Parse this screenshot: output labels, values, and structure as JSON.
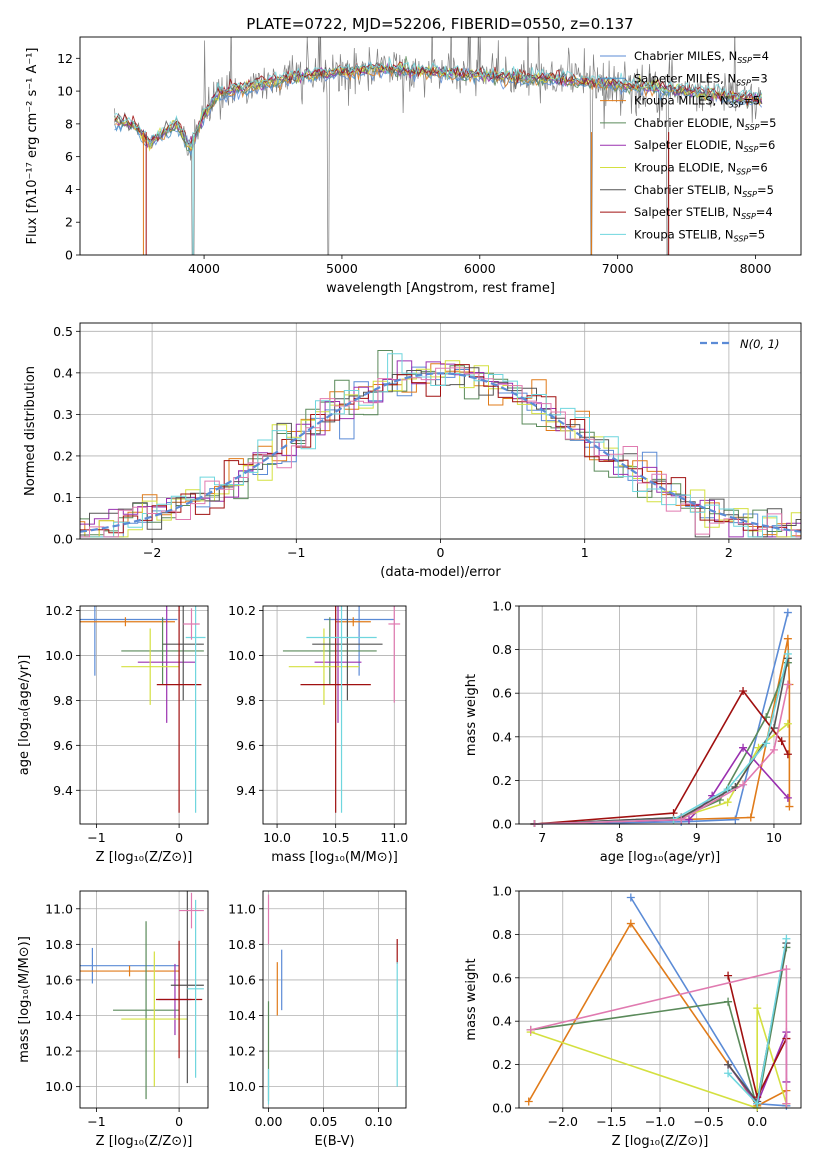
{
  "title": "PLATE=0722, MJD=52206, FIBERID=0550, z=0.137",
  "colors": {
    "chabrier_miles": "#5b8bd6",
    "salpeter_miles": "#4a90c8",
    "kroupa_miles": "#e07b1a",
    "chabrier_elodie": "#5a8a5a",
    "salpeter_elodie": "#9a30b0",
    "kroupa_elodie": "#d4e040",
    "chabrier_stelib": "#555555",
    "salpeter_stelib": "#a01010",
    "kroupa_stelib": "#6fd6de",
    "pink": "#e07ab0",
    "gray": "#808080",
    "gaussian": "#5b8bd6"
  },
  "legend_spectrum": [
    {
      "label": "Chabrier MILES, N",
      "sub": "SSP",
      "tail": "=4",
      "color": "#5b8bd6"
    },
    {
      "label": "Salpeter MILES, N",
      "sub": "SSP",
      "tail": "=3",
      "color": "#4a90c8"
    },
    {
      "label": "Kroupa MILES, N",
      "sub": "SSP",
      "tail": "=5",
      "color": "#e07b1a"
    },
    {
      "label": "Chabrier ELODIE, N",
      "sub": "SSP",
      "tail": "=5",
      "color": "#5a8a5a"
    },
    {
      "label": "Salpeter ELODIE, N",
      "sub": "SSP",
      "tail": "=6",
      "color": "#9a30b0"
    },
    {
      "label": "Kroupa ELODIE, N",
      "sub": "SSP",
      "tail": "=6",
      "color": "#d4e040"
    },
    {
      "label": "Chabrier STELIB, N",
      "sub": "SSP",
      "tail": "=5",
      "color": "#555555"
    },
    {
      "label": "Salpeter STELIB, N",
      "sub": "SSP",
      "tail": "=4",
      "color": "#a01010"
    },
    {
      "label": "Kroupa STELIB, N",
      "sub": "SSP",
      "tail": "=5",
      "color": "#6fd6de"
    }
  ],
  "chart_data": [
    {
      "type": "line",
      "title": "PLATE=0722, MJD=52206, FIBERID=0550, z=0.137",
      "xlabel": "wavelength [Angstrom, rest frame]",
      "ylabel": "Flux [fλ10⁻¹⁷ erg cm⁻² s⁻¹ A⁻¹]",
      "xlim": [
        3100,
        8330
      ],
      "ylim": [
        0,
        13.3
      ],
      "xticks": [
        4000,
        5000,
        6000,
        7000,
        8000
      ],
      "yticks": [
        0,
        2,
        4,
        6,
        8,
        10,
        12
      ],
      "legend": "top-right",
      "continuum_model": [
        [
          3350,
          8.2
        ],
        [
          3500,
          7.9
        ],
        [
          3600,
          6.8
        ],
        [
          3700,
          7.4
        ],
        [
          3800,
          8.0
        ],
        [
          3900,
          6.5
        ],
        [
          4000,
          8.6
        ],
        [
          4100,
          9.8
        ],
        [
          4300,
          10.2
        ],
        [
          4500,
          10.6
        ],
        [
          4700,
          10.9
        ],
        [
          5000,
          11.2
        ],
        [
          5300,
          11.3
        ],
        [
          5600,
          11.2
        ],
        [
          6000,
          11.0
        ],
        [
          6300,
          10.8
        ],
        [
          6600,
          10.7
        ],
        [
          6900,
          10.5
        ],
        [
          7200,
          10.2
        ],
        [
          7500,
          10.0
        ],
        [
          7800,
          9.7
        ],
        [
          8050,
          9.5
        ]
      ]
    },
    {
      "type": "line",
      "xlabel": "(data-model)/error",
      "ylabel": "Normed distribution",
      "xlim": [
        -2.5,
        2.5
      ],
      "ylim": [
        0,
        0.52
      ],
      "xticks": [
        -2,
        -1,
        0,
        1,
        2
      ],
      "yticks": [
        0.0,
        0.1,
        0.2,
        0.3,
        0.4,
        0.5
      ],
      "legend": "top-right",
      "gaussian_label": "N(0, 1)",
      "bin_width": 0.1
    },
    {
      "type": "scatter",
      "xlabel": "Z [log₁₀(Z/Z⊙)]",
      "ylabel": "age  [log₁₀(age/yr)]",
      "xlim": [
        -1.2,
        0.35
      ],
      "ylim": [
        9.25,
        10.22
      ],
      "xticks": [
        -1,
        0
      ],
      "yticks": [
        9.4,
        9.6,
        9.8,
        10.0,
        10.2
      ],
      "points": [
        {
          "x": -1.02,
          "y": 10.16,
          "xerr": 1.0,
          "yerr": 0.25,
          "color": "#5b8bd6"
        },
        {
          "x": -0.65,
          "y": 10.15,
          "xerr": 0.6,
          "yerr": 0.02,
          "color": "#e07b1a"
        },
        {
          "x": -0.2,
          "y": 10.02,
          "xerr": 0.5,
          "yerr": 0.15,
          "color": "#5a8a5a"
        },
        {
          "x": -0.15,
          "y": 9.97,
          "xerr": 0.35,
          "yerr": 0.27,
          "color": "#9a30b0"
        },
        {
          "x": -0.35,
          "y": 9.95,
          "xerr": 0.35,
          "yerr": 0.17,
          "color": "#d4e040"
        },
        {
          "x": 0.05,
          "y": 10.05,
          "xerr": 0.25,
          "yerr": 0.25,
          "color": "#555555"
        },
        {
          "x": 0.0,
          "y": 9.87,
          "xerr": 0.27,
          "yerr": 0.57,
          "color": "#a01010"
        },
        {
          "x": 0.2,
          "y": 10.08,
          "xerr": 0.12,
          "yerr": 0.78,
          "color": "#6fd6de"
        },
        {
          "x": 0.15,
          "y": 10.14,
          "xerr": 0.1,
          "yerr": 0.07,
          "color": "#e07ab0"
        }
      ]
    },
    {
      "type": "scatter",
      "xlabel": "mass [log₁₀(M/M⊙)]",
      "ylabel": "",
      "xlim": [
        9.88,
        11.1
      ],
      "ylim": [
        9.25,
        10.22
      ],
      "xticks": [
        10.0,
        10.5,
        11.0
      ],
      "yticks": [
        9.4,
        9.6,
        9.8,
        10.0,
        10.2
      ],
      "points": [
        {
          "x": 10.7,
          "y": 10.16,
          "xerr": 0.3,
          "yerr": 0.25,
          "color": "#5b8bd6"
        },
        {
          "x": 10.65,
          "y": 10.15,
          "xerr": 0.15,
          "yerr": 0.02,
          "color": "#e07b1a"
        },
        {
          "x": 10.45,
          "y": 10.02,
          "xerr": 0.4,
          "yerr": 0.15,
          "color": "#5a8a5a"
        },
        {
          "x": 10.52,
          "y": 9.97,
          "xerr": 0.2,
          "yerr": 0.27,
          "color": "#9a30b0"
        },
        {
          "x": 10.4,
          "y": 9.95,
          "xerr": 0.3,
          "yerr": 0.17,
          "color": "#d4e040"
        },
        {
          "x": 10.6,
          "y": 10.05,
          "xerr": 0.3,
          "yerr": 0.25,
          "color": "#555555"
        },
        {
          "x": 10.5,
          "y": 9.87,
          "xerr": 0.3,
          "yerr": 0.57,
          "color": "#a01010"
        },
        {
          "x": 10.55,
          "y": 10.08,
          "xerr": 0.3,
          "yerr": 0.78,
          "color": "#6fd6de"
        },
        {
          "x": 11.0,
          "y": 10.14,
          "xerr": 0.05,
          "yerr": 0.35,
          "color": "#e07ab0"
        }
      ]
    },
    {
      "type": "line",
      "xlabel": "age  [log₁₀(age/yr)]",
      "ylabel": "mass weight",
      "xlim": [
        6.7,
        10.35
      ],
      "ylim": [
        0,
        1.0
      ],
      "xticks": [
        7,
        8,
        9,
        10
      ],
      "yticks": [
        0.0,
        0.2,
        0.4,
        0.6,
        0.8,
        1.0
      ],
      "series": [
        {
          "color": "#5b8bd6",
          "x": [
            6.9,
            8.8,
            9.5,
            10.18
          ],
          "y": [
            0.0,
            0.01,
            0.02,
            0.97
          ]
        },
        {
          "color": "#e07b1a",
          "x": [
            6.9,
            9.7,
            10.18,
            10.2,
            10.2
          ],
          "y": [
            0.0,
            0.03,
            0.85,
            0.64,
            0.08
          ]
        },
        {
          "color": "#5a8a5a",
          "x": [
            6.9,
            8.8,
            9.3,
            9.9,
            10.18
          ],
          "y": [
            0.0,
            0.03,
            0.11,
            0.49,
            0.74
          ]
        },
        {
          "color": "#9a30b0",
          "x": [
            6.9,
            8.9,
            9.2,
            9.6,
            10.18
          ],
          "y": [
            0.0,
            0.02,
            0.13,
            0.35,
            0.12
          ]
        },
        {
          "color": "#d4e040",
          "x": [
            6.9,
            8.7,
            9.4,
            9.8,
            10.18
          ],
          "y": [
            0.0,
            0.02,
            0.1,
            0.35,
            0.46
          ]
        },
        {
          "color": "#555555",
          "x": [
            6.9,
            8.8,
            9.5,
            10.0,
            10.18
          ],
          "y": [
            0.0,
            0.03,
            0.17,
            0.44,
            0.76
          ]
        },
        {
          "color": "#a01010",
          "x": [
            6.9,
            8.7,
            9.6,
            10.1,
            10.18
          ],
          "y": [
            0.0,
            0.05,
            0.61,
            0.38,
            0.32
          ]
        },
        {
          "color": "#6fd6de",
          "x": [
            6.9,
            8.7,
            9.4,
            9.9,
            10.18
          ],
          "y": [
            0.0,
            0.02,
            0.16,
            0.37,
            0.78
          ]
        },
        {
          "color": "#e07ab0",
          "x": [
            6.9,
            8.8,
            9.6,
            10.0,
            10.18
          ],
          "y": [
            0.0,
            0.02,
            0.18,
            0.34,
            0.64
          ]
        }
      ]
    },
    {
      "type": "scatter",
      "xlabel": "Z [log₁₀(Z/Z⊙)]",
      "ylabel": "mass [log₁₀(M/M⊙)]",
      "xlim": [
        -1.2,
        0.35
      ],
      "ylim": [
        9.88,
        11.1
      ],
      "xticks": [
        -1,
        0
      ],
      "yticks": [
        10.0,
        10.2,
        10.4,
        10.6,
        10.8,
        11.0
      ],
      "points": [
        {
          "x": -1.05,
          "y": 10.68,
          "xerr": 1.05,
          "yerr": 0.1,
          "color": "#5b8bd6"
        },
        {
          "x": -0.6,
          "y": 10.65,
          "xerr": 0.6,
          "yerr": 0.03,
          "color": "#e07b1a"
        },
        {
          "x": -0.4,
          "y": 10.43,
          "xerr": 0.4,
          "yerr": 0.5,
          "color": "#5a8a5a"
        },
        {
          "x": -0.05,
          "y": 10.49,
          "xerr": 0.2,
          "yerr": 0.2,
          "color": "#9a30b0"
        },
        {
          "x": -0.3,
          "y": 10.38,
          "xerr": 0.4,
          "yerr": 0.38,
          "color": "#d4e040"
        },
        {
          "x": 0.1,
          "y": 10.57,
          "xerr": 0.2,
          "yerr": 0.55,
          "color": "#555555"
        },
        {
          "x": 0.0,
          "y": 10.49,
          "xerr": 0.28,
          "yerr": 0.33,
          "color": "#a01010"
        },
        {
          "x": 0.2,
          "y": 10.55,
          "xerr": 0.1,
          "yerr": 0.5,
          "color": "#6fd6de"
        },
        {
          "x": 0.15,
          "y": 10.99,
          "xerr": 0.15,
          "yerr": 0.1,
          "color": "#e07ab0"
        }
      ]
    },
    {
      "type": "scatter",
      "xlabel": "E(B-V)",
      "ylabel": "",
      "xlim": [
        -0.005,
        0.125
      ],
      "ylim": [
        9.88,
        11.1
      ],
      "xticks": [
        0.0,
        0.05,
        0.1
      ],
      "yticks": [
        10.0,
        10.2,
        10.4,
        10.6,
        10.8,
        11.0
      ],
      "points": [
        {
          "x": 0.0,
          "y": 10.2,
          "yerr": 0.28,
          "color": "#5a8a5a"
        },
        {
          "x": 0.0,
          "y": 10.0,
          "yerr": 0.1,
          "color": "#6fd6de"
        },
        {
          "x": 0.0,
          "y": 10.94,
          "yerr": 0.14,
          "color": "#e07ab0"
        },
        {
          "x": 0.008,
          "y": 10.55,
          "yerr": 0.15,
          "color": "#e07b1a"
        },
        {
          "x": 0.012,
          "y": 10.6,
          "yerr": 0.17,
          "color": "#5b8bd6"
        },
        {
          "x": 0.117,
          "y": 10.76,
          "yerr": 0.07,
          "color": "#a01010"
        },
        {
          "x": 0.117,
          "y": 10.35,
          "yerr": 0.35,
          "color": "#6fd6de"
        }
      ]
    },
    {
      "type": "line",
      "xlabel": "Z [log₁₀(Z/Z⊙)]",
      "ylabel": "mass weight",
      "xlim": [
        -2.45,
        0.45
      ],
      "ylim": [
        0,
        1.0
      ],
      "xticks": [
        -2.0,
        -1.5,
        -1.0,
        -0.5,
        0.0
      ],
      "yticks": [
        0.0,
        0.2,
        0.4,
        0.6,
        0.8,
        1.0
      ],
      "series": [
        {
          "color": "#5b8bd6",
          "x": [
            -1.3,
            0.0,
            0.3
          ],
          "y": [
            0.97,
            0.02,
            0.01
          ]
        },
        {
          "color": "#e07b1a",
          "x": [
            -2.35,
            -1.3,
            0.0,
            0.3,
            0.3
          ],
          "y": [
            0.03,
            0.85,
            0.01,
            0.08,
            0.02
          ]
        },
        {
          "color": "#5a8a5a",
          "x": [
            -2.33,
            -0.3,
            0.0,
            0.3
          ],
          "y": [
            0.36,
            0.49,
            0.0,
            0.74
          ]
        },
        {
          "color": "#9a30b0",
          "x": [
            -0.3,
            0.0,
            0.3,
            0.3
          ],
          "y": [
            0.2,
            0.02,
            0.35,
            0.12
          ]
        },
        {
          "color": "#d4e040",
          "x": [
            -2.33,
            0.0,
            0.0,
            0.3
          ],
          "y": [
            0.35,
            0.0,
            0.46,
            0.02
          ]
        },
        {
          "color": "#555555",
          "x": [
            -0.3,
            0.0,
            0.3
          ],
          "y": [
            0.2,
            0.03,
            0.76
          ]
        },
        {
          "color": "#a01010",
          "x": [
            -0.3,
            0.0,
            0.3
          ],
          "y": [
            0.61,
            0.05,
            0.32
          ]
        },
        {
          "color": "#6fd6de",
          "x": [
            -0.3,
            0.0,
            0.3
          ],
          "y": [
            0.16,
            0.02,
            0.78
          ]
        },
        {
          "color": "#e07ab0",
          "x": [
            -2.33,
            0.3,
            0.3
          ],
          "y": [
            0.36,
            0.64,
            0.02
          ]
        }
      ]
    }
  ]
}
